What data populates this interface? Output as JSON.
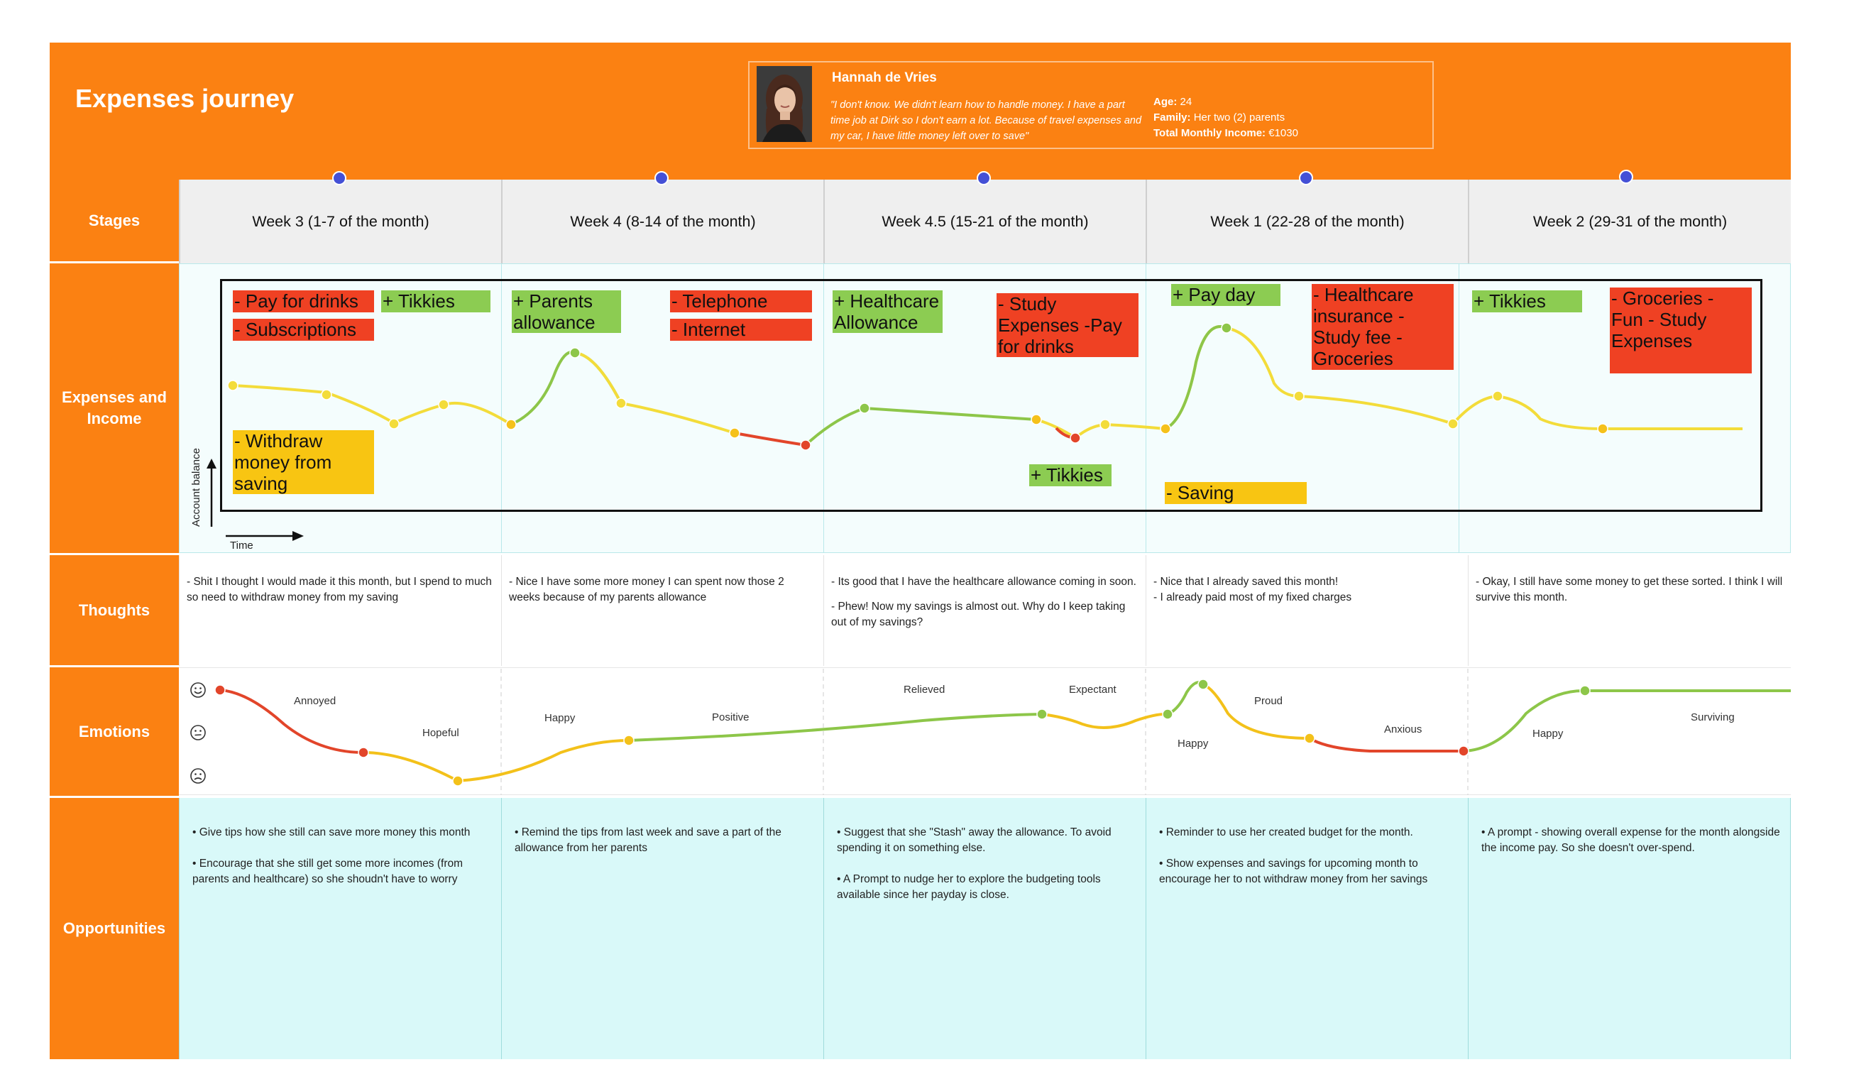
{
  "title": "Expenses journey",
  "persona": {
    "name": "Hannah de Vries",
    "quote": "\"I don't know. We didn't learn how to handle money. I have a part time job at Dirk so I don't earn a lot. Because of travel expenses and my car, I have little money left over to save\"",
    "age_label": "Age:",
    "age": "24",
    "family_label": "Family:",
    "family": "Her two (2) parents",
    "income_label": "Total Monthly Income:",
    "income": "€1030"
  },
  "rows": {
    "stages": "Stages",
    "expenses": "Expenses and Income",
    "thoughts": "Thoughts",
    "emotions": "Emotions",
    "opportunities": "Opportunities"
  },
  "stages": [
    "Week 3 (1-7 of the month)",
    "Week 4 (8-14 of the month)",
    "Week 4.5 (15-21 of the month)",
    "Week 1 (22-28 of the month)",
    "Week 2 (29-31 of the month)"
  ],
  "axes": {
    "y": "Account balance",
    "x": "Time"
  },
  "stickies": [
    "- Pay for drinks",
    "+ Tikkies",
    "- Subscriptions",
    "- Withdraw money from saving",
    "+ Parents allowance",
    "- Telephone",
    "- Internet",
    "+ Healthcare Allowance",
    "- Study Expenses -Pay for drinks",
    "+ Tikkies",
    "+ Pay day",
    "- Healthcare insurance - Study fee - Groceries",
    "- Saving",
    "+ Tikkies",
    "- Groceries - Fun - Study Expenses"
  ],
  "thoughts": [
    [
      "- Shit I thought I would made it this month, but I spend to much so need to withdraw money from my saving"
    ],
    [
      "- Nice I have some more money I can spent now those 2 weeks because of my parents allowance"
    ],
    [
      "- Its good that I have the healthcare allowance coming in soon.",
      "- Phew! Now my savings is almost out. Why do I keep taking out of my savings?"
    ],
    [
      "- Nice that I already saved this month!",
      "- I already paid most of my fixed charges"
    ],
    [
      "- Okay, I still have some money to get these sorted. I think I will survive this month."
    ]
  ],
  "emotions": [
    "Annoyed",
    "Hopeful",
    "Happy",
    "Positive",
    "Relieved",
    "Expectant",
    "Happy",
    "Proud",
    "Anxious",
    "Happy",
    "Surviving"
  ],
  "emotion_scale_icons": [
    "happy-face-icon",
    "neutral-face-icon",
    "sad-face-icon"
  ],
  "opportunities": [
    [
      "• Give tips how she still can save more money this month",
      "• Encourage that she still get some more incomes (from parents and healthcare) so she shoudn't have to worry"
    ],
    [
      "• Remind the tips from last week and save a part of the allowance from her parents"
    ],
    [
      "• Suggest that she \"Stash\" away the allowance. To avoid spending it on something else.",
      "• A Prompt to nudge her to explore the budgeting tools available since her payday is close."
    ],
    [
      "• Reminder to use her created budget for the month.",
      "• Show expenses and savings for upcoming month to encourage her to not withdraw money from her savings"
    ],
    [
      "• A prompt - showing overall expense for the month alongside the income pay. So she doesn't over-spend."
    ]
  ],
  "colors": {
    "orange": "#fb8112",
    "red_sticky": "#ef4123",
    "green_sticky": "#8ccc52",
    "yellow_sticky": "#f8c512",
    "timeline_dot": "#4450d6",
    "opportunity_bg": "#d9f9f9"
  }
}
